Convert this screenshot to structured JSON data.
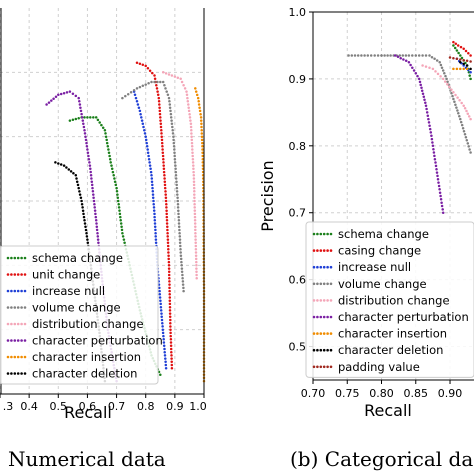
{
  "chart_data": [
    {
      "type": "scatter",
      "caption": "Numerical data",
      "xlabel": "Recall",
      "ylabel": "",
      "xlim": [
        0.3,
        1.0
      ],
      "ylim": [
        0.4,
        1.0
      ],
      "x_ticks": [
        0.3,
        0.4,
        0.5,
        0.6,
        0.7,
        0.8,
        0.9,
        1.0
      ],
      "x_tick_labels": [
        ".3",
        "0.4",
        "0.5",
        "0.6",
        "0.7",
        "0.8",
        "0.9",
        "1.0"
      ],
      "grid": true,
      "legend_position": "lower-left",
      "series": [
        {
          "name": "schema change",
          "color": "#1a7f1a",
          "points": [
            [
              0.54,
              0.825
            ],
            [
              0.58,
              0.83
            ],
            [
              0.63,
              0.83
            ],
            [
              0.66,
              0.81
            ],
            [
              0.68,
              0.76
            ],
            [
              0.7,
              0.72
            ],
            [
              0.72,
              0.65
            ],
            [
              0.75,
              0.59
            ],
            [
              0.78,
              0.53
            ],
            [
              0.82,
              0.46
            ],
            [
              0.85,
              0.43
            ]
          ]
        },
        {
          "name": "unit change",
          "color": "#e01010",
          "points": [
            [
              0.77,
              0.915
            ],
            [
              0.8,
              0.91
            ],
            [
              0.83,
              0.895
            ],
            [
              0.845,
              0.86
            ],
            [
              0.855,
              0.8
            ],
            [
              0.87,
              0.7
            ],
            [
              0.88,
              0.6
            ],
            [
              0.885,
              0.5
            ],
            [
              0.89,
              0.44
            ]
          ]
        },
        {
          "name": "increase null",
          "color": "#1f3fd6",
          "points": [
            [
              0.76,
              0.87
            ],
            [
              0.78,
              0.84
            ],
            [
              0.8,
              0.8
            ],
            [
              0.82,
              0.74
            ],
            [
              0.83,
              0.68
            ],
            [
              0.84,
              0.6
            ],
            [
              0.855,
              0.52
            ],
            [
              0.87,
              0.44
            ]
          ]
        },
        {
          "name": "volume change",
          "color": "#808080",
          "points": [
            [
              0.72,
              0.86
            ],
            [
              0.77,
              0.875
            ],
            [
              0.82,
              0.885
            ],
            [
              0.86,
              0.885
            ],
            [
              0.88,
              0.86
            ],
            [
              0.895,
              0.8
            ],
            [
              0.91,
              0.7
            ],
            [
              0.92,
              0.62
            ],
            [
              0.93,
              0.56
            ]
          ]
        },
        {
          "name": "distribution change",
          "color": "#f4a6b8",
          "points": [
            [
              0.86,
              0.9
            ],
            [
              0.89,
              0.895
            ],
            [
              0.92,
              0.89
            ],
            [
              0.94,
              0.87
            ],
            [
              0.955,
              0.82
            ],
            [
              0.965,
              0.74
            ],
            [
              0.97,
              0.66
            ],
            [
              0.975,
              0.58
            ]
          ]
        },
        {
          "name": "character perturbation",
          "color": "#7a1fa3",
          "points": [
            [
              0.46,
              0.85
            ],
            [
              0.5,
              0.865
            ],
            [
              0.54,
              0.87
            ],
            [
              0.57,
              0.86
            ],
            [
              0.59,
              0.81
            ],
            [
              0.61,
              0.75
            ],
            [
              0.63,
              0.67
            ],
            [
              0.65,
              0.58
            ],
            [
              0.67,
              0.5
            ],
            [
              0.7,
              0.42
            ]
          ]
        },
        {
          "name": "character insertion",
          "color": "#f08c00",
          "points": [
            [
              0.97,
              0.875
            ],
            [
              0.98,
              0.86
            ],
            [
              0.99,
              0.83
            ],
            [
              0.995,
              0.78
            ],
            [
              0.998,
              0.72
            ],
            [
              0.999,
              0.64
            ],
            [
              1.0,
              0.56
            ],
            [
              1.0,
              0.48
            ],
            [
              1.0,
              0.42
            ]
          ]
        },
        {
          "name": "character deletion",
          "color": "#000000",
          "points": [
            [
              0.49,
              0.76
            ],
            [
              0.52,
              0.755
            ],
            [
              0.56,
              0.74
            ],
            [
              0.58,
              0.7
            ],
            [
              0.6,
              0.64
            ],
            [
              0.62,
              0.57
            ],
            [
              0.64,
              0.5
            ],
            [
              0.66,
              0.42
            ]
          ]
        }
      ]
    },
    {
      "type": "scatter",
      "caption": "(b)  Categorical da",
      "xlabel": "Recall",
      "ylabel": "Precision",
      "xlim": [
        0.7,
        0.935
      ],
      "ylim": [
        0.45,
        1.0
      ],
      "x_ticks": [
        0.7,
        0.75,
        0.8,
        0.85,
        0.9
      ],
      "x_tick_labels": [
        "0.70",
        "0.75",
        "0.80",
        "0.85",
        "0.90"
      ],
      "y_ticks": [
        0.5,
        0.6,
        0.7,
        0.8,
        0.9,
        1.0
      ],
      "y_tick_labels": [
        "0.5",
        "0.6",
        "0.7",
        "0.8",
        "0.9",
        "1.0"
      ],
      "grid": true,
      "legend_position": "lower-left",
      "series": [
        {
          "name": "schema change",
          "color": "#1a7f1a",
          "points": [
            [
              0.905,
              0.95
            ],
            [
              0.915,
              0.935
            ],
            [
              0.925,
              0.92
            ],
            [
              0.93,
              0.9
            ]
          ]
        },
        {
          "name": "casing change",
          "color": "#e01010",
          "points": [
            [
              0.905,
              0.955
            ],
            [
              0.912,
              0.95
            ],
            [
              0.92,
              0.945
            ],
            [
              0.93,
              0.935
            ]
          ]
        },
        {
          "name": "increase null",
          "color": "#1f3fd6",
          "points": [
            [
              0.91,
              0.93
            ],
            [
              0.92,
              0.92
            ],
            [
              0.93,
              0.91
            ]
          ]
        },
        {
          "name": "volume change",
          "color": "#808080",
          "points": [
            [
              0.8,
              0.935
            ],
            [
              0.84,
              0.935
            ],
            [
              0.87,
              0.935
            ],
            [
              0.885,
              0.925
            ],
            [
              0.895,
              0.9
            ],
            [
              0.905,
              0.87
            ],
            [
              0.915,
              0.84
            ],
            [
              0.93,
              0.79
            ]
          ]
        },
        {
          "name": "distribution change",
          "color": "#f4a6b8",
          "points": [
            [
              0.86,
              0.92
            ],
            [
              0.875,
              0.915
            ],
            [
              0.89,
              0.9
            ],
            [
              0.905,
              0.88
            ],
            [
              0.92,
              0.86
            ],
            [
              0.93,
              0.84
            ]
          ]
        },
        {
          "name": "character perturbation",
          "color": "#7a1fa3",
          "points": [
            [
              0.82,
              0.935
            ],
            [
              0.84,
              0.925
            ],
            [
              0.855,
              0.9
            ],
            [
              0.865,
              0.86
            ],
            [
              0.872,
              0.82
            ],
            [
              0.878,
              0.78
            ],
            [
              0.884,
              0.74
            ],
            [
              0.89,
              0.7
            ]
          ]
        },
        {
          "name": "character insertion",
          "color": "#f08c00",
          "points": [
            [
              0.905,
              0.915
            ],
            [
              0.915,
              0.915
            ],
            [
              0.925,
              0.915
            ]
          ]
        },
        {
          "name": "character deletion",
          "color": "#000000",
          "points": [
            [
              0.915,
              0.925
            ],
            [
              0.925,
              0.92
            ],
            [
              0.93,
              0.915
            ]
          ]
        },
        {
          "name": "padding value",
          "color": "#a0281e",
          "points": [
            [
              0.9,
              0.932
            ],
            [
              0.91,
              0.93
            ],
            [
              0.92,
              0.928
            ],
            [
              0.93,
              0.926
            ]
          ]
        }
      ],
      "baseline_series": {
        "color": "#808080",
        "points": [
          [
            0.752,
            0.935
          ],
          [
            0.78,
            0.935
          ],
          [
            0.8,
            0.935
          ]
        ]
      }
    }
  ],
  "styles": {
    "grid_color": "#d0d0d0",
    "axis_color": "#000000"
  }
}
